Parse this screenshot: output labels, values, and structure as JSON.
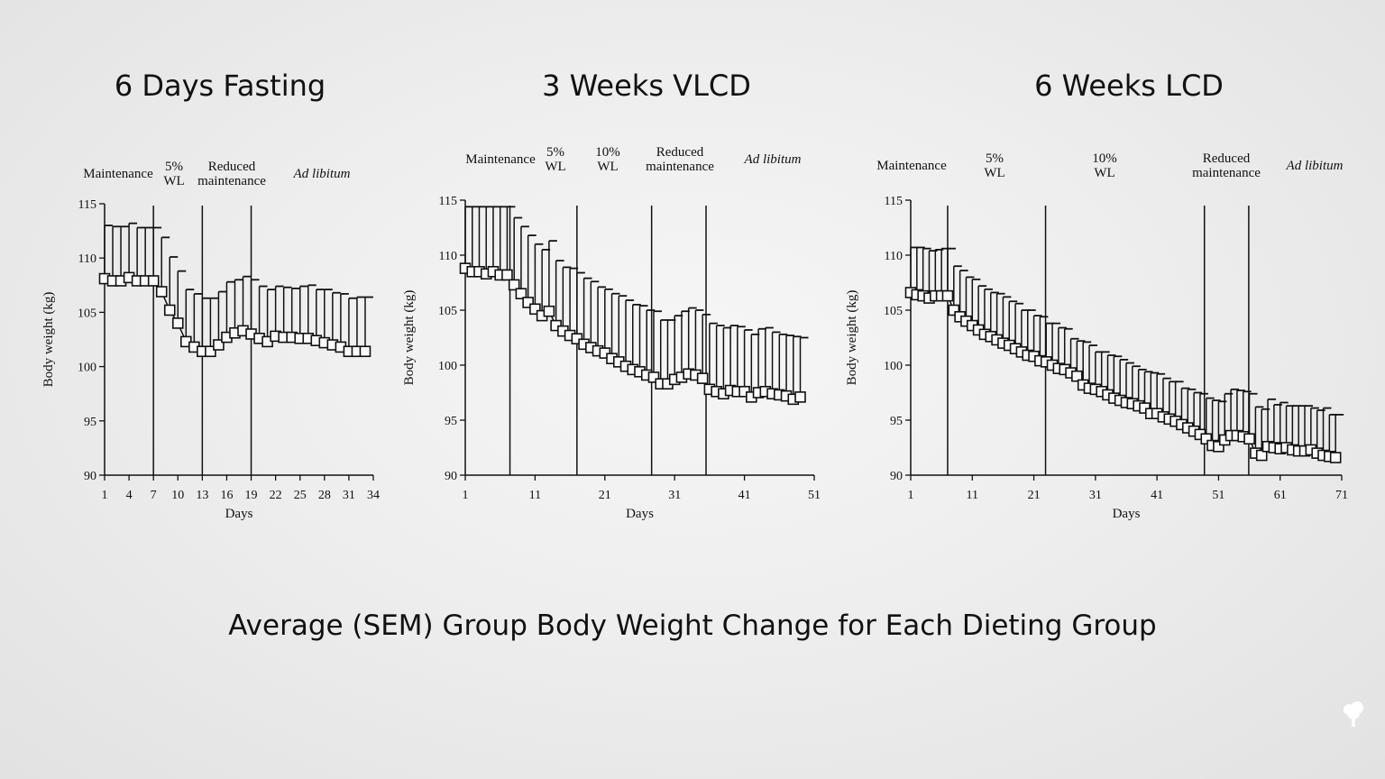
{
  "caption": "Average (SEM) Group Body Weight Change for Each Dieting Group",
  "chart_data": [
    {
      "type": "line",
      "title": "6 Days Fasting",
      "xlabel": "Days",
      "ylabel": "Body weight (kg)",
      "xlim": [
        1,
        34
      ],
      "ylim": [
        90,
        115
      ],
      "xticks": [
        1,
        4,
        7,
        10,
        13,
        16,
        19,
        22,
        25,
        28,
        31,
        34
      ],
      "yticks": [
        90,
        95,
        100,
        105,
        110,
        115
      ],
      "phases": [
        {
          "label": [
            "Maintenance"
          ],
          "italic": false
        },
        {
          "label": [
            "5%",
            "WL"
          ],
          "italic": false
        },
        {
          "label": [
            "Reduced",
            "maintenance"
          ],
          "italic": false
        },
        {
          "label": [
            "Ad libitum"
          ],
          "italic": true
        }
      ],
      "phase_boundaries_day": [
        7,
        13,
        19
      ],
      "grid": false,
      "marker": "open-square",
      "x_start_day": 1,
      "mean": [
        108.1,
        107.9,
        107.9,
        108.2,
        107.9,
        107.9,
        107.9,
        106.9,
        105.2,
        104.0,
        102.3,
        101.8,
        101.4,
        101.4,
        102.0,
        102.7,
        103.1,
        103.3,
        103.0,
        102.6,
        102.3,
        102.8,
        102.7,
        102.7,
        102.6,
        102.6,
        102.4,
        102.2,
        102.0,
        101.8,
        101.4,
        101.4,
        101.4
      ],
      "mean_plus_sem": [
        113.0,
        112.9,
        112.9,
        113.2,
        112.8,
        112.8,
        112.8,
        111.9,
        110.1,
        108.8,
        107.1,
        106.7,
        106.3,
        106.3,
        106.9,
        107.8,
        108.0,
        108.3,
        108.0,
        107.4,
        107.1,
        107.4,
        107.3,
        107.2,
        107.4,
        107.5,
        107.1,
        107.1,
        106.8,
        106.7,
        106.3,
        106.4,
        106.4
      ]
    },
    {
      "type": "line",
      "title": "3 Weeks VLCD",
      "xlabel": "Days",
      "ylabel": "Body weight (kg)",
      "xlim": [
        1,
        51
      ],
      "ylim": [
        90,
        115
      ],
      "xticks": [
        1,
        11,
        21,
        31,
        41,
        51
      ],
      "yticks": [
        90,
        95,
        100,
        105,
        110,
        115
      ],
      "phases": [
        {
          "label": [
            "Maintenance"
          ],
          "italic": false
        },
        {
          "label": [
            "5%",
            "WL"
          ],
          "italic": false
        },
        {
          "label": [
            "10%",
            "WL"
          ],
          "italic": false
        },
        {
          "label": [
            "Reduced",
            "maintenance"
          ],
          "italic": false
        },
        {
          "label": [
            "Ad libitum"
          ],
          "italic": true
        }
      ],
      "phase_boundaries_day": [
        7.4,
        17,
        27.7,
        35.5
      ],
      "grid": false,
      "marker": "open-square",
      "x_start_day": 1,
      "mean": [
        108.8,
        108.5,
        108.5,
        108.3,
        108.5,
        108.2,
        108.2,
        107.3,
        106.5,
        105.7,
        105.1,
        104.5,
        104.9,
        103.6,
        103.1,
        102.7,
        102.4,
        101.9,
        101.6,
        101.3,
        101.1,
        100.6,
        100.3,
        99.9,
        99.6,
        99.4,
        99.1,
        98.9,
        98.3,
        98.3,
        98.7,
        98.9,
        99.2,
        99.1,
        98.8,
        97.8,
        97.6,
        97.4,
        97.7,
        97.6,
        97.6,
        97.1,
        97.5,
        97.6,
        97.4,
        97.3,
        97.2,
        96.9,
        97.1
      ],
      "mean_plus_sem": [
        114.4,
        114.4,
        114.4,
        114.4,
        114.4,
        114.4,
        114.4,
        113.4,
        112.6,
        111.8,
        111.0,
        110.5,
        111.3,
        109.5,
        108.9,
        108.8,
        108.4,
        107.9,
        107.6,
        107.1,
        106.9,
        106.5,
        106.3,
        105.9,
        105.5,
        105.4,
        105.0,
        104.9,
        104.1,
        104.1,
        104.5,
        104.9,
        105.2,
        105.0,
        104.6,
        103.8,
        103.6,
        103.4,
        103.6,
        103.5,
        103.2,
        102.8,
        103.3,
        103.4,
        103.0,
        102.8,
        102.7,
        102.6,
        102.5
      ]
    },
    {
      "type": "line",
      "title": "6 Weeks LCD",
      "xlabel": "Days",
      "ylabel": "Body weight (kg)",
      "xlim": [
        1,
        71
      ],
      "ylim": [
        90,
        115
      ],
      "xticks": [
        1,
        11,
        21,
        31,
        41,
        51,
        61,
        71
      ],
      "yticks": [
        90,
        95,
        100,
        105,
        110,
        115
      ],
      "phases": [
        {
          "label": [
            "Maintenance"
          ],
          "italic": false
        },
        {
          "label": [
            "5%",
            "WL"
          ],
          "italic": false
        },
        {
          "label": [
            "10%",
            "WL"
          ],
          "italic": false
        },
        {
          "label": [
            "Reduced",
            "maintenance"
          ],
          "italic": false
        },
        {
          "label": [
            "Ad libitum"
          ],
          "italic": true
        }
      ],
      "phase_boundaries_day": [
        7,
        22.9,
        48.7,
        55.9
      ],
      "grid": false,
      "marker": "open-square",
      "x_start_day": 1,
      "mean": [
        106.6,
        106.4,
        106.3,
        106.1,
        106.3,
        106.3,
        106.3,
        105.0,
        104.4,
        104.0,
        103.6,
        103.2,
        102.8,
        102.6,
        102.3,
        102.0,
        101.8,
        101.5,
        101.2,
        100.9,
        100.8,
        100.4,
        100.3,
        100.0,
        99.7,
        99.6,
        99.3,
        99.0,
        98.2,
        97.9,
        97.8,
        97.6,
        97.3,
        97.0,
        96.8,
        96.6,
        96.5,
        96.3,
        96.1,
        95.6,
        95.6,
        95.3,
        95.1,
        94.9,
        94.6,
        94.3,
        94.0,
        93.7,
        93.3,
        92.7,
        92.6,
        93.2,
        93.6,
        93.6,
        93.5,
        93.3,
        92.0,
        91.8,
        92.6,
        92.5,
        92.4,
        92.5,
        92.3,
        92.2,
        92.2,
        92.3,
        92.0,
        91.8,
        91.7,
        91.6
      ],
      "mean_plus_sem": [
        110.7,
        110.7,
        110.6,
        110.4,
        110.5,
        110.6,
        110.6,
        109.0,
        108.6,
        108.0,
        107.8,
        107.2,
        106.9,
        106.6,
        106.5,
        106.2,
        105.8,
        105.6,
        105.0,
        105.0,
        104.5,
        104.4,
        103.8,
        103.8,
        103.4,
        103.3,
        102.4,
        102.2,
        102.1,
        101.8,
        101.2,
        101.2,
        100.9,
        100.8,
        100.5,
        100.2,
        99.9,
        99.6,
        99.4,
        99.3,
        99.2,
        98.8,
        98.5,
        98.5,
        97.9,
        97.8,
        97.5,
        97.4,
        97.0,
        96.8,
        96.7,
        97.4,
        97.8,
        97.7,
        97.6,
        97.4,
        96.2,
        96.0,
        96.9,
        96.4,
        96.6,
        96.3,
        96.3,
        96.3,
        96.3,
        96.1,
        95.9,
        96.1,
        95.5,
        95.5
      ]
    }
  ],
  "logo": "tree-icon"
}
